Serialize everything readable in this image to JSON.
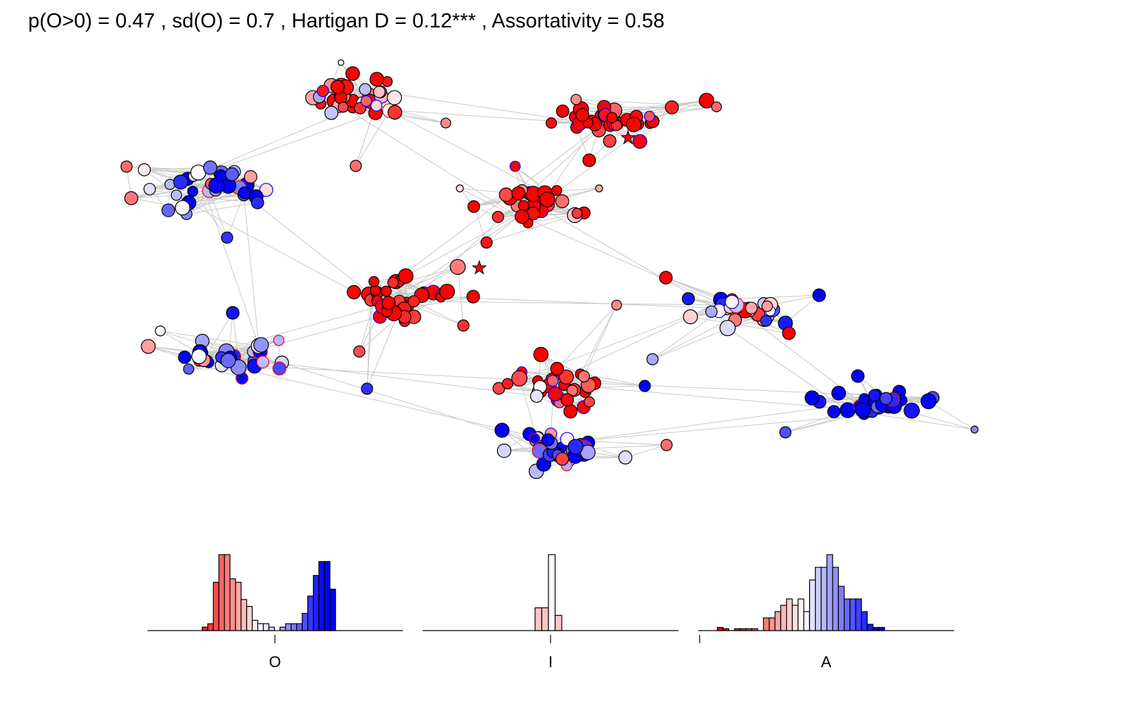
{
  "title": "p(O>0) = 0.47 , sd(O) = 0.7 , Hartigan D = 0.12*** , Assortativity = 0.58",
  "colors": {
    "strong_red": "#ff0000",
    "mid_red": "#f07070",
    "light_red": "#f4a4a4",
    "white": "#ffffff",
    "light_blue": "#c4c4f8",
    "mid_blue": "#7272f0",
    "strong_blue": "#0000ff",
    "edge": "#c8c8c8"
  },
  "chart_data": [
    {
      "type": "network",
      "clusters": [
        {
          "cx": 0.215,
          "cy": 0.135,
          "rx": 0.07,
          "ry": 0.05,
          "n": 38,
          "bias": -0.7,
          "spread": 0.5
        },
        {
          "cx": 0.235,
          "cy": 0.26,
          "rx": 0.12,
          "ry": 0.07,
          "n": 40,
          "bias": 0.2,
          "spread": 1.0
        },
        {
          "cx": 0.56,
          "cy": 0.17,
          "rx": 0.12,
          "ry": 0.06,
          "n": 36,
          "bias": -0.9,
          "spread": 0.25
        },
        {
          "cx": 0.48,
          "cy": 0.3,
          "rx": 0.09,
          "ry": 0.06,
          "n": 34,
          "bias": -0.85,
          "spread": 0.3
        },
        {
          "cx": 0.18,
          "cy": 0.43,
          "rx": 0.1,
          "ry": 0.05,
          "n": 34,
          "bias": -0.85,
          "spread": 0.3
        },
        {
          "cx": 0.0,
          "cy": 0.0,
          "rx": 0.12,
          "ry": 0.06,
          "n": 38,
          "bias": 0.2,
          "spread": 1.0
        },
        {
          "cx": 0.26,
          "cy": 0.55,
          "rx": 0.13,
          "ry": 0.05,
          "n": 40,
          "bias": 0.5,
          "spread": 0.9
        },
        {
          "cx": 0.51,
          "cy": 0.56,
          "rx": 0.12,
          "ry": 0.06,
          "n": 36,
          "bias": -0.6,
          "spread": 0.6
        },
        {
          "cx": 0.51,
          "cy": 0.64,
          "rx": 0.1,
          "ry": 0.06,
          "n": 36,
          "bias": 0.6,
          "spread": 0.5
        },
        {
          "cx": 0.79,
          "cy": 0.56,
          "rx": 0.13,
          "ry": 0.05,
          "n": 36,
          "bias": 0.9,
          "spread": 0.25
        },
        {
          "cx": 0.68,
          "cy": 0.43,
          "rx": 0.15,
          "ry": 0.06,
          "n": 36,
          "bias": 0.2,
          "spread": 1.0
        }
      ],
      "stars": [
        {
          "x": 0.588,
          "y": 0.179
        },
        {
          "x": 0.416,
          "y": 0.381
        }
      ]
    },
    {
      "type": "bar",
      "xlabel": "O",
      "values": [
        0,
        0,
        0,
        0,
        1,
        2,
        14,
        22,
        22,
        15,
        14,
        9,
        7,
        3,
        2,
        2,
        1,
        0,
        1,
        2,
        2,
        2,
        5,
        10,
        16,
        20,
        20,
        12,
        0
      ],
      "diverging": true
    },
    {
      "type": "bar",
      "xlabel": "I",
      "values": [
        0,
        0,
        0,
        0,
        0,
        0,
        0,
        0,
        0,
        0,
        0,
        0,
        0,
        3,
        3,
        10,
        2,
        0,
        0,
        0,
        0,
        0,
        0,
        0,
        0,
        0,
        0,
        0,
        0
      ],
      "diverging": true
    },
    {
      "type": "bar",
      "xlabel": "A",
      "values": [
        0,
        0.5,
        0.3,
        0,
        0.3,
        0.3,
        0.3,
        0.3,
        0,
        2,
        2,
        3,
        4,
        5,
        4,
        5,
        3,
        8,
        10,
        10,
        12,
        10,
        7,
        5,
        5,
        5,
        3,
        1,
        0.5,
        0.5,
        0,
        0
      ],
      "diverging": true
    }
  ]
}
